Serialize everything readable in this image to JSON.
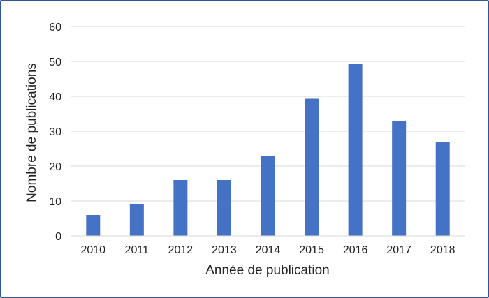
{
  "chart_data": {
    "type": "bar",
    "title": "",
    "xlabel": "Année de publication",
    "ylabel": "Nombre de publications",
    "categories": [
      "2010",
      "2011",
      "2012",
      "2013",
      "2014",
      "2015",
      "2016",
      "2017",
      "2018"
    ],
    "values": [
      6,
      9,
      16,
      16,
      23,
      39.3,
      49.3,
      33,
      27
    ],
    "ylim": [
      0,
      60
    ],
    "yticks": [
      "0",
      "10",
      "20",
      "30",
      "40",
      "50",
      "60"
    ],
    "grid": true,
    "legend": "none",
    "bar_color": "#4472c4",
    "frame_color": "#2f5597",
    "grid_color": "#d9d9d9"
  }
}
